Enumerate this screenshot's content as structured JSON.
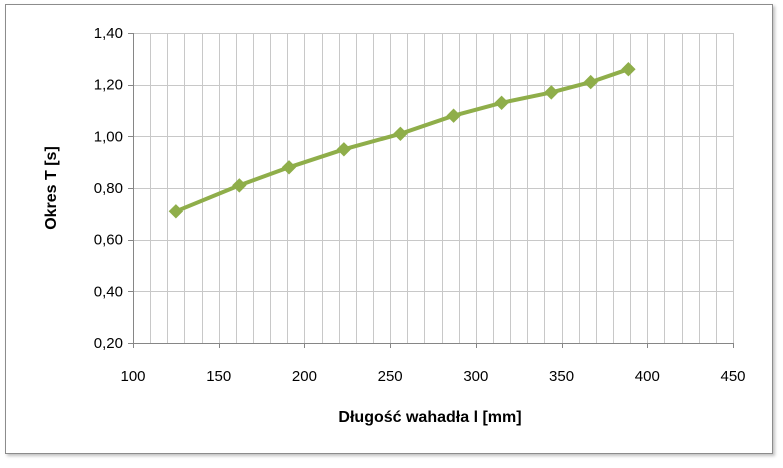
{
  "chart_data": {
    "type": "line",
    "title": "",
    "xlabel": "Długość wahadła l [mm]",
    "ylabel": "Okres T [s]",
    "xlim": [
      100,
      450
    ],
    "ylim": [
      0.2,
      1.4
    ],
    "x_ticks": [
      100,
      150,
      200,
      250,
      300,
      350,
      400,
      450
    ],
    "x_tick_labels": [
      "100",
      "150",
      "200",
      "250",
      "300",
      "350",
      "400",
      "450"
    ],
    "y_ticks": [
      0.2,
      0.4,
      0.6,
      0.8,
      1.0,
      1.2,
      1.4
    ],
    "y_tick_labels": [
      "0,20",
      "0,40",
      "0,60",
      "0,80",
      "1,00",
      "1,20",
      "1,40"
    ],
    "x_minor_step": 10,
    "y_major_step": 0.2,
    "grid": true,
    "legend": "none",
    "series": [
      {
        "x": [
          125,
          162,
          191,
          223,
          256,
          287,
          315,
          344,
          367,
          389
        ],
        "y": [
          0.71,
          0.81,
          0.88,
          0.95,
          1.01,
          1.08,
          1.13,
          1.17,
          1.21,
          1.26
        ],
        "color": "#8fae4a",
        "marker": "diamond"
      }
    ]
  }
}
